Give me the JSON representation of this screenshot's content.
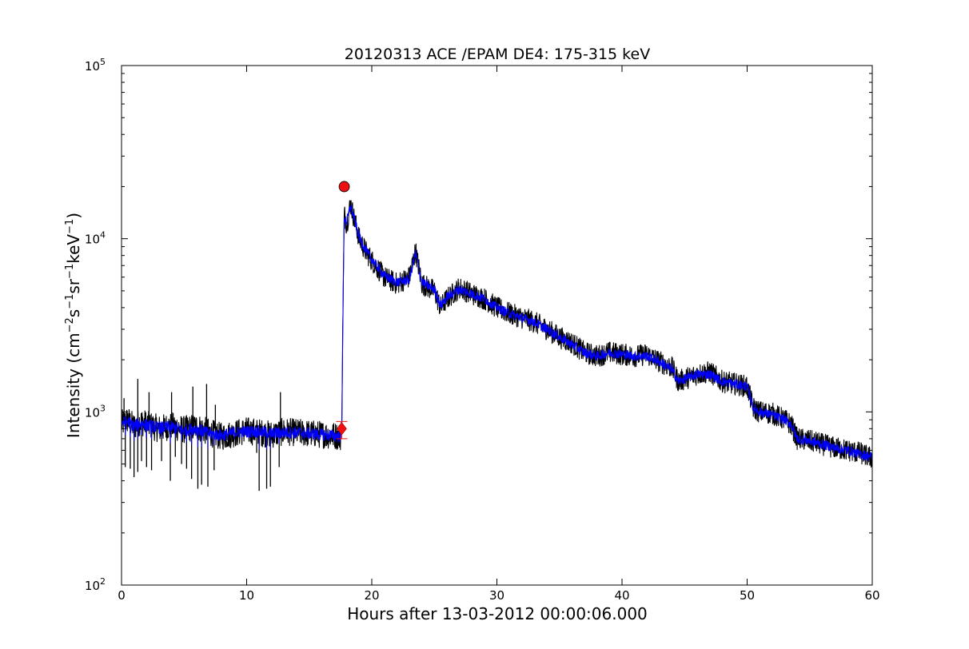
{
  "chart_data": {
    "type": "line",
    "title": "20120313 ACE /EPAM DE4: 175-315 keV",
    "xlabel": "Hours after 13-03-2012 00:00:06.000",
    "ylabel_parts": [
      "Intensity (cm",
      "−2",
      "s",
      "−1",
      "sr",
      "−1",
      "keV",
      "−1",
      ")"
    ],
    "xlim": [
      0,
      60
    ],
    "ylim": [
      100,
      100000
    ],
    "yscale": "log",
    "grid": false,
    "x_ticks": [
      0,
      10,
      20,
      30,
      40,
      50,
      60
    ],
    "x_tick_labels": [
      "0",
      "10",
      "20",
      "30",
      "40",
      "50",
      "60"
    ],
    "y_ticks": [
      {
        "value": 100,
        "base": "10",
        "exp": "2"
      },
      {
        "value": 1000,
        "base": "10",
        "exp": "3"
      },
      {
        "value": 10000,
        "base": "10",
        "exp": "4"
      },
      {
        "value": 100000,
        "base": "10",
        "exp": "5"
      }
    ],
    "colors": {
      "raw": "#000000",
      "smoothed": "#0000ff",
      "marker": "#ee1111"
    },
    "series": [
      {
        "style": "raw-black",
        "x": [
          0.0,
          0.5,
          1.0,
          1.5,
          2.0,
          3.0,
          4.0,
          5.0,
          6.0,
          7.0,
          8.0,
          9.0,
          10.0,
          11.0,
          12.0,
          13.0,
          14.0,
          15.0,
          16.0,
          17.0,
          17.5,
          17.6,
          17.7,
          17.8,
          18.0,
          18.3,
          18.6,
          19.0,
          19.5,
          20.0,
          21.0,
          22.0,
          23.0,
          23.5,
          24.0,
          25.0,
          25.5,
          26.0,
          27.0,
          28.0,
          29.0,
          30.0,
          31.0,
          32.0,
          33.0,
          34.0,
          35.0,
          36.0,
          37.0,
          38.0,
          39.0,
          40.0,
          41.0,
          42.0,
          43.0,
          44.0,
          44.5,
          45.0,
          46.0,
          47.0,
          48.0,
          49.0,
          50.0,
          50.5,
          51.0,
          52.0,
          53.0,
          53.5,
          54.0,
          55.0,
          56.0,
          57.0,
          58.0,
          59.0,
          60.0
        ],
        "y": [
          850,
          900,
          820,
          880,
          850,
          800,
          830,
          790,
          820,
          760,
          720,
          750,
          780,
          760,
          740,
          770,
          760,
          750,
          740,
          730,
          720,
          800,
          4000,
          14000,
          12000,
          16000,
          13000,
          10000,
          8500,
          7500,
          6000,
          5500,
          6000,
          8500,
          5500,
          5000,
          4000,
          4500,
          5200,
          4800,
          4500,
          4000,
          3700,
          3500,
          3300,
          3000,
          2700,
          2500,
          2200,
          2100,
          2200,
          2150,
          2100,
          2150,
          1950,
          1800,
          1500,
          1550,
          1650,
          1700,
          1500,
          1450,
          1400,
          1050,
          1000,
          980,
          900,
          850,
          700,
          680,
          650,
          620,
          600,
          580,
          540
        ]
      },
      {
        "style": "smoothed-blue",
        "x": [
          0.0,
          0.5,
          1.0,
          1.5,
          2.0,
          3.0,
          4.0,
          5.0,
          6.0,
          7.0,
          8.0,
          9.0,
          10.0,
          11.0,
          12.0,
          13.0,
          14.0,
          15.0,
          16.0,
          17.0,
          17.5,
          17.6,
          17.7,
          17.8,
          18.0,
          18.3,
          18.6,
          19.0,
          19.5,
          20.0,
          21.0,
          22.0,
          23.0,
          23.5,
          24.0,
          25.0,
          25.5,
          26.0,
          27.0,
          28.0,
          29.0,
          30.0,
          31.0,
          32.0,
          33.0,
          34.0,
          35.0,
          36.0,
          37.0,
          38.0,
          39.0,
          40.0,
          41.0,
          42.0,
          43.0,
          44.0,
          44.5,
          45.0,
          46.0,
          47.0,
          48.0,
          49.0,
          50.0,
          50.5,
          51.0,
          52.0,
          53.0,
          53.5,
          54.0,
          55.0,
          56.0,
          57.0,
          58.0,
          59.0,
          60.0
        ],
        "y": [
          860,
          880,
          830,
          860,
          840,
          810,
          820,
          780,
          800,
          750,
          730,
          760,
          770,
          770,
          750,
          760,
          760,
          750,
          740,
          730,
          720,
          810,
          3800,
          13500,
          12500,
          15500,
          13000,
          10200,
          8600,
          7600,
          6100,
          5600,
          5800,
          8300,
          5600,
          5100,
          4100,
          4600,
          5100,
          4800,
          4500,
          4000,
          3700,
          3500,
          3300,
          3000,
          2700,
          2450,
          2200,
          2100,
          2200,
          2150,
          2100,
          2100,
          1950,
          1750,
          1500,
          1550,
          1650,
          1650,
          1500,
          1450,
          1400,
          1050,
          1000,
          960,
          900,
          850,
          700,
          680,
          650,
          620,
          600,
          570,
          550
        ]
      }
    ],
    "markers": [
      {
        "shape": "circle",
        "x": 17.8,
        "y": 20000
      },
      {
        "shape": "diamond",
        "x": 17.6,
        "y": 800
      },
      {
        "shape": "errorbar",
        "x": 17.6,
        "y": 800,
        "low": 700,
        "high": 880
      }
    ],
    "dips": [
      [
        0.3,
        480
      ],
      [
        0.7,
        470
      ],
      [
        1.0,
        420
      ],
      [
        1.3,
        450
      ],
      [
        1.6,
        520
      ],
      [
        2.0,
        480
      ],
      [
        2.4,
        460
      ],
      [
        3.2,
        520
      ],
      [
        3.9,
        400
      ],
      [
        4.3,
        550
      ],
      [
        4.8,
        500
      ],
      [
        5.2,
        470
      ],
      [
        5.6,
        410
      ],
      [
        6.1,
        360
      ],
      [
        6.4,
        380
      ],
      [
        6.9,
        370
      ],
      [
        7.4,
        460
      ],
      [
        10.8,
        580
      ],
      [
        11.0,
        350
      ],
      [
        11.6,
        360
      ],
      [
        11.9,
        370
      ],
      [
        12.6,
        480
      ]
    ],
    "spikes": [
      [
        0.2,
        1200
      ],
      [
        1.3,
        1550
      ],
      [
        2.2,
        1300
      ],
      [
        4.0,
        1300
      ],
      [
        5.7,
        1400
      ],
      [
        6.8,
        1450
      ],
      [
        7.5,
        1100
      ],
      [
        12.7,
        1300
      ]
    ]
  }
}
